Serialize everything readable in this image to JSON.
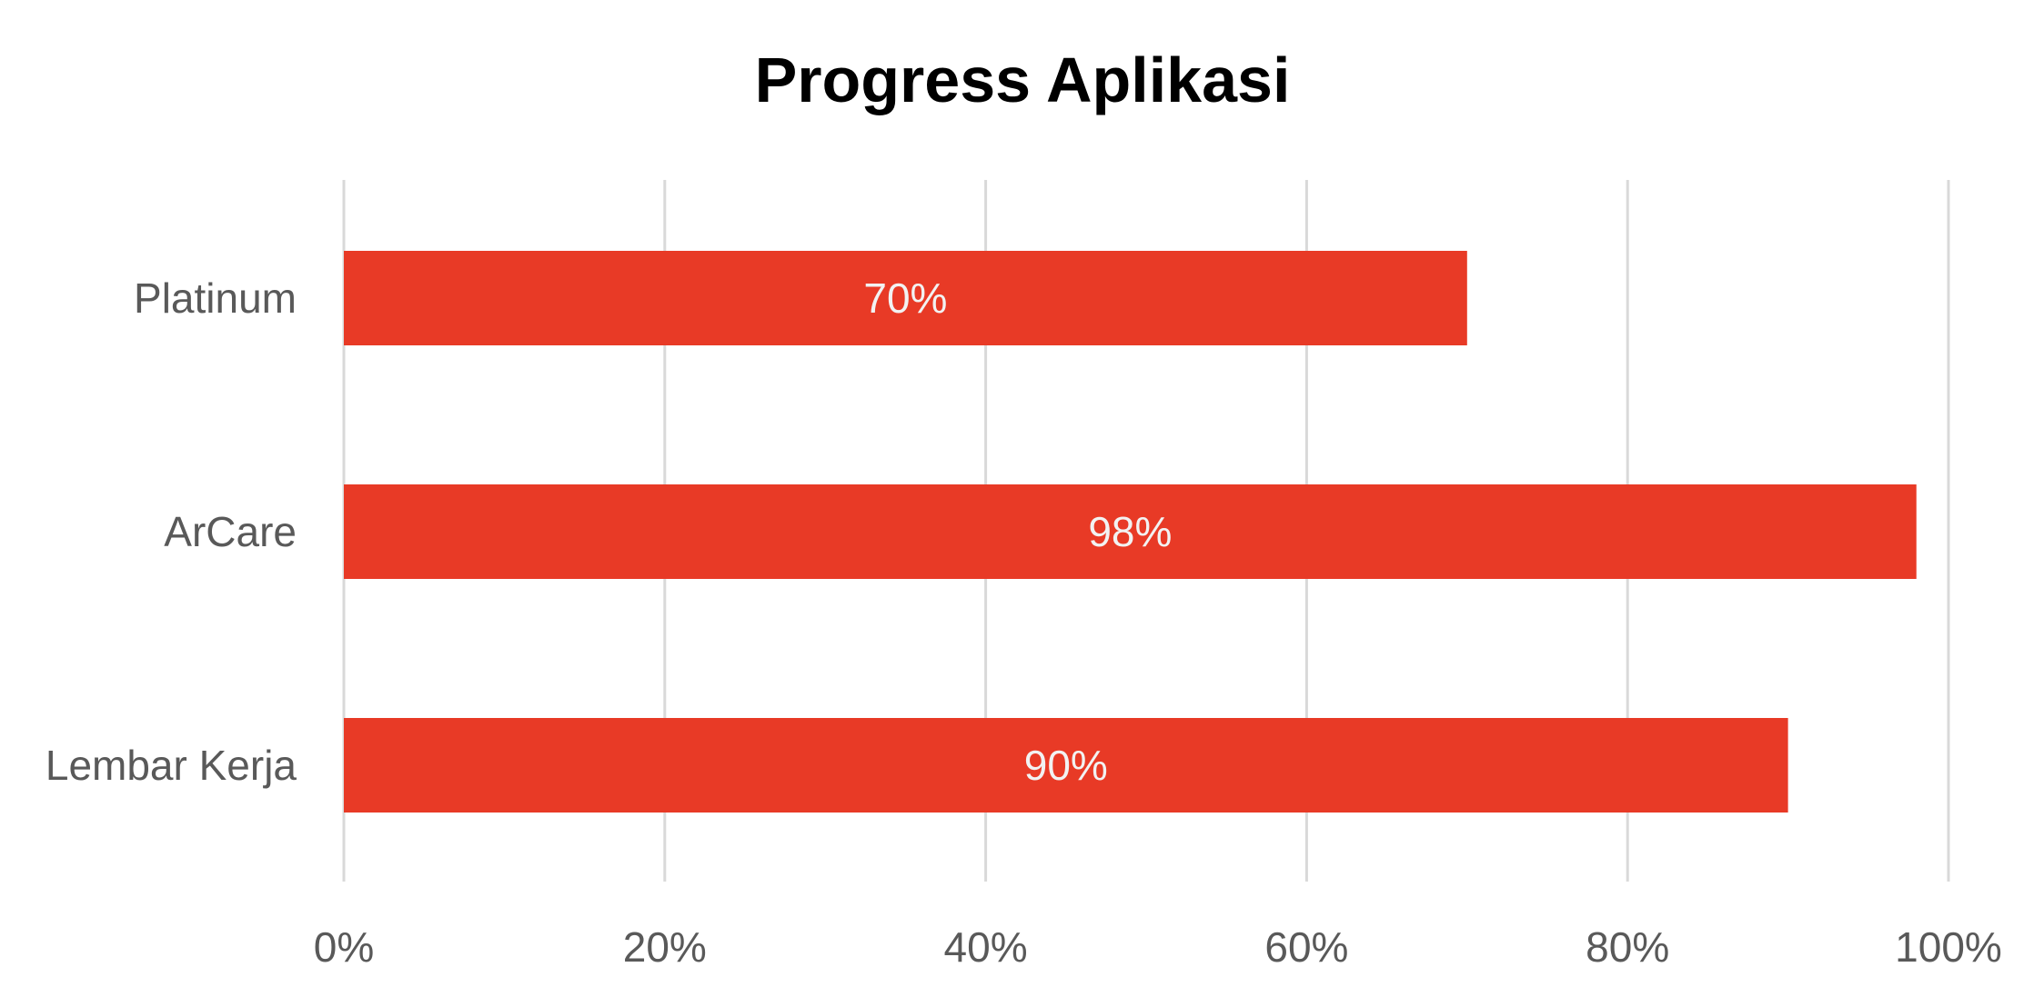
{
  "chart_data": {
    "type": "bar",
    "orientation": "horizontal",
    "title": "Progress Aplikasi",
    "categories": [
      "Platinum",
      "ArCare",
      "Lembar Kerja"
    ],
    "values": [
      0.7,
      0.98,
      0.9
    ],
    "data_labels": [
      "70%",
      "98%",
      "90%"
    ],
    "xlim": [
      0,
      1
    ],
    "x_ticks": [
      0,
      0.2,
      0.4,
      0.6,
      0.8,
      1.0
    ],
    "x_tick_labels": [
      "0%",
      "20%",
      "40%",
      "60%",
      "80%",
      "100%"
    ],
    "grid": "vertical",
    "legend": "none",
    "bar_color": "#e83a26"
  }
}
